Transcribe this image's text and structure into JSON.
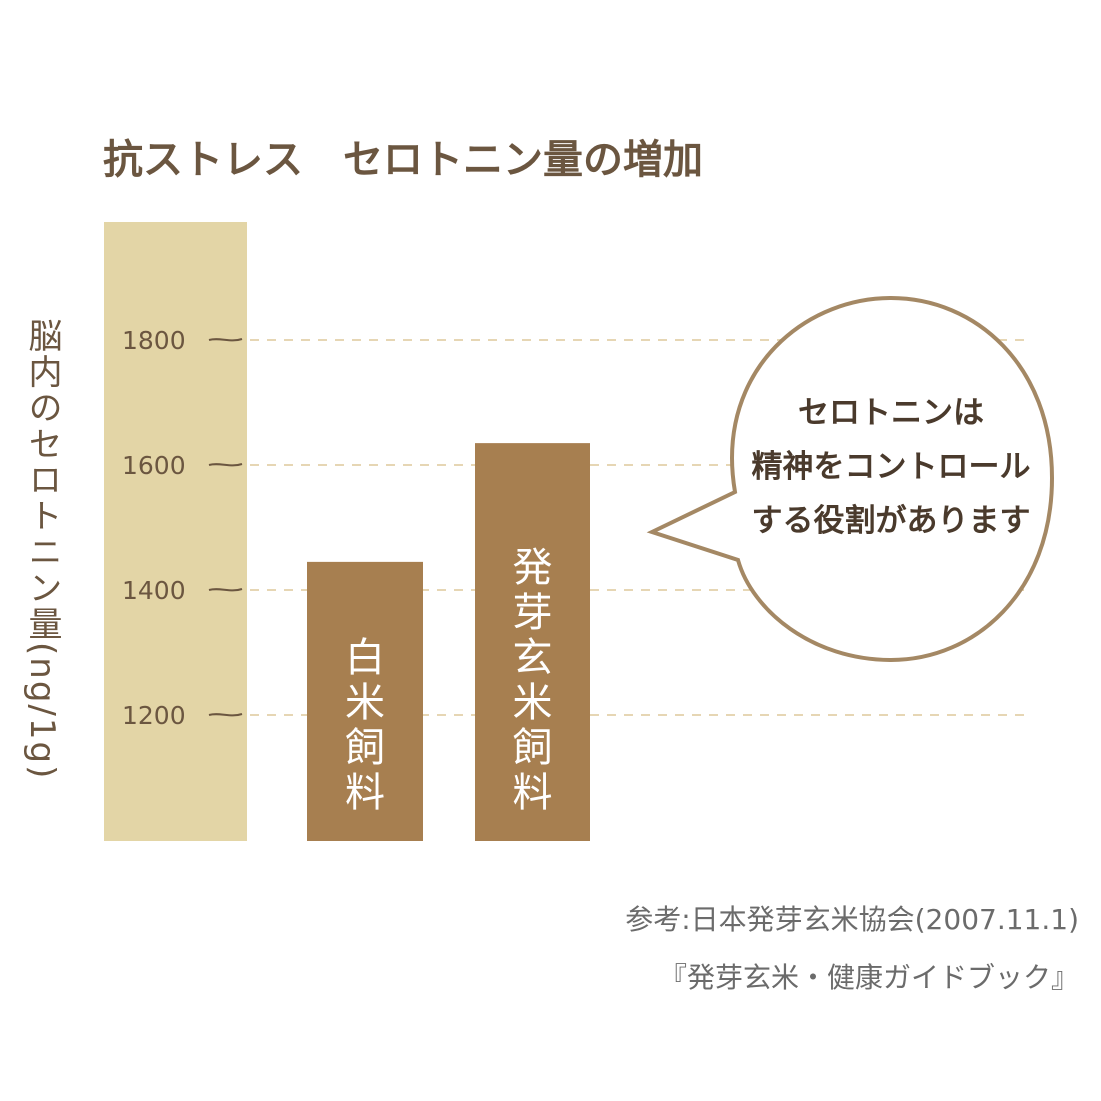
{
  "colors": {
    "axis_bar": "#e3d5a6",
    "bar": "#a77f50",
    "grid": "#e6d6b4",
    "text": "#6b5640",
    "bubble_stroke": "#a48864"
  },
  "chart_data": {
    "type": "bar",
    "title": "抗ストレス　セロトニン量の増加",
    "ylabel": "脳内のセロトニン量(ng/1g)",
    "xlabel": "",
    "y_ticks": [
      1200,
      1400,
      1600,
      1800
    ],
    "ylim": [
      1000,
      2000
    ],
    "grid": true,
    "categories": [
      "白米飼料",
      "発芽玄米飼料"
    ],
    "values": [
      1445,
      1635
    ]
  },
  "callout": {
    "lines": [
      "セロトニンは",
      "精神をコントロール",
      "する役割があります"
    ]
  },
  "source": {
    "line1": "参考:日本発芽玄米協会(2007.11.1)",
    "line2": "『発芽玄米・健康ガイドブック』"
  }
}
